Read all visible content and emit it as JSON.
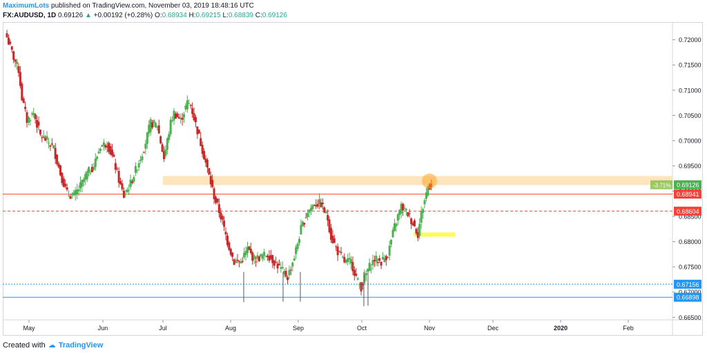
{
  "header": {
    "line1": {
      "author": "MaximumLots",
      "rest": " published on TradingView.com, November 03, 2019 18:48:16 UTC"
    },
    "line2": {
      "symbol": "FX:AUDUSD, 1D",
      "last": "0.69126",
      "change_arrow": "▲",
      "change": "+0.00192 (+0.28%)",
      "o_label": "O:",
      "o": "0.68934",
      "h_label": "H:",
      "h": "0.69215",
      "l_label": "L:",
      "l": "0.68839",
      "c_label": "C:",
      "c": "0.69126"
    }
  },
  "colors": {
    "up": "#26a69a",
    "down": "#ef5350",
    "up_body": "#4caf50",
    "down_body": "#c62828",
    "red_line": "#f44336",
    "blue_line": "#2196f3",
    "zone": "#ffe0b2",
    "yellow_box": "#ffff00",
    "circle": "#ffa726"
  },
  "chart_data": {
    "type": "candlestick",
    "y_axis": {
      "min": 0.6645,
      "max": 0.7235,
      "ticks": [
        "0.72000",
        "0.71500",
        "0.71000",
        "0.70500",
        "0.70000",
        "0.69500",
        "0.69000",
        "0.68500",
        "0.68000",
        "0.67500",
        "0.67000",
        "0.66500"
      ]
    },
    "x_axis": {
      "labels": [
        "May",
        "Jun",
        "Jul",
        "Aug",
        "Sep",
        "Oct",
        "Nov",
        "Dec",
        "2020",
        "Feb"
      ]
    },
    "price_labels": [
      {
        "text": "0.69126",
        "value": 0.69126,
        "color": "#4caf50"
      },
      {
        "text": "0.68941",
        "value": 0.68941,
        "color": "#f44336"
      },
      {
        "text": "0.68604",
        "value": 0.68604,
        "color": "#f44336"
      },
      {
        "text": "0.67156",
        "value": 0.67156,
        "color": "#2196f3"
      },
      {
        "text": "0.66898",
        "value": 0.66898,
        "color": "#2196f3"
      }
    ],
    "percent_label": "-3.71%",
    "lines": [
      {
        "value": 0.68941,
        "style": "solid",
        "color": "#f44336"
      },
      {
        "value": 0.68604,
        "style": "dashed",
        "color": "#f44336"
      },
      {
        "value": 0.67156,
        "style": "dotted",
        "color": "#2196f3"
      },
      {
        "value": 0.66898,
        "style": "solid",
        "color": "#2196f3"
      }
    ],
    "zone": {
      "from": 0.6912,
      "to": 0.693,
      "color": "#ffe0b2"
    },
    "series_anchors": [
      [
        0,
        0.7205
      ],
      [
        4,
        0.7165
      ],
      [
        7,
        0.714
      ],
      [
        9,
        0.7085
      ],
      [
        12,
        0.704
      ],
      [
        16,
        0.7055
      ],
      [
        20,
        0.701
      ],
      [
        24,
        0.7
      ],
      [
        28,
        0.6985
      ],
      [
        32,
        0.6935
      ],
      [
        36,
        0.6895
      ],
      [
        40,
        0.689
      ],
      [
        44,
        0.691
      ],
      [
        48,
        0.6935
      ],
      [
        52,
        0.695
      ],
      [
        56,
        0.699
      ],
      [
        60,
        0.6995
      ],
      [
        64,
        0.696
      ],
      [
        68,
        0.691
      ],
      [
        70,
        0.689
      ],
      [
        74,
        0.6915
      ],
      [
        78,
        0.695
      ],
      [
        82,
        0.6985
      ],
      [
        86,
        0.7035
      ],
      [
        90,
        0.703
      ],
      [
        94,
        0.6965
      ],
      [
        98,
        0.7035
      ],
      [
        100,
        0.7055
      ],
      [
        104,
        0.704
      ],
      [
        108,
        0.7075
      ],
      [
        110,
        0.707
      ],
      [
        114,
        0.702
      ],
      [
        118,
        0.697
      ],
      [
        121,
        0.693
      ],
      [
        124,
        0.689
      ],
      [
        128,
        0.685
      ],
      [
        132,
        0.68
      ],
      [
        136,
        0.676
      ],
      [
        140,
        0.676
      ],
      [
        144,
        0.6785
      ],
      [
        148,
        0.6765
      ],
      [
        152,
        0.677
      ],
      [
        156,
        0.6775
      ],
      [
        160,
        0.676
      ],
      [
        164,
        0.6745
      ],
      [
        168,
        0.673
      ],
      [
        172,
        0.677
      ],
      [
        176,
        0.6825
      ],
      [
        180,
        0.686
      ],
      [
        184,
        0.6875
      ],
      [
        188,
        0.6875
      ],
      [
        192,
        0.6845
      ],
      [
        194,
        0.681
      ],
      [
        198,
        0.678
      ],
      [
        202,
        0.676
      ],
      [
        206,
        0.676
      ],
      [
        210,
        0.672
      ],
      [
        212,
        0.671
      ],
      [
        216,
        0.6745
      ],
      [
        220,
        0.6765
      ],
      [
        224,
        0.676
      ],
      [
        228,
        0.6775
      ],
      [
        232,
        0.683
      ],
      [
        236,
        0.687
      ],
      [
        240,
        0.6855
      ],
      [
        244,
        0.683
      ],
      [
        246,
        0.6815
      ],
      [
        248,
        0.6855
      ],
      [
        252,
        0.691
      ],
      [
        254,
        0.6913
      ]
    ]
  }
}
